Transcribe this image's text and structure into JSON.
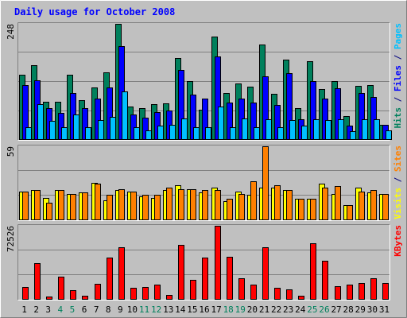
{
  "chart_data": {
    "type": "bar",
    "title": "Daily usage for October 2008",
    "categories": [
      "1",
      "2",
      "3",
      "4",
      "5",
      "6",
      "7",
      "8",
      "9",
      "10",
      "11",
      "12",
      "13",
      "14",
      "15",
      "16",
      "17",
      "18",
      "19",
      "20",
      "21",
      "22",
      "23",
      "24",
      "25",
      "26",
      "27",
      "28",
      "29",
      "30",
      "31"
    ],
    "weekend_days": [
      "4",
      "5",
      "11",
      "12",
      "18",
      "19",
      "25",
      "26"
    ],
    "panels": [
      {
        "name": "hits-files-pages",
        "ymax_label": "248",
        "ylim": [
          0,
          248
        ],
        "ylabel_parts": [
          {
            "text": "Hits",
            "color": "#00805C"
          },
          {
            "text": " / ",
            "color": "#000080"
          },
          {
            "text": "Files",
            "color": "#0000FF"
          },
          {
            "text": " / ",
            "color": "#000080"
          },
          {
            "text": "Pages",
            "color": "#00C0FF"
          }
        ],
        "series": [
          {
            "name": "Hits",
            "color": "#00805C",
            "values": [
              140,
              160,
              82,
              82,
              140,
              85,
              112,
              144,
              248,
              72,
              68,
              77,
              78,
              175,
              125,
              65,
              220,
              101,
              121,
              114,
              203,
              98,
              172,
              68,
              168,
              108,
              126,
              51,
              115,
              118,
              32
            ]
          },
          {
            "name": "Files",
            "color": "#0000FF",
            "values": [
              118,
              128,
              68,
              58,
              100,
              68,
              88,
              112,
              200,
              55,
              48,
              60,
              62,
              150,
              96,
              88,
              178,
              80,
              88,
              80,
              136,
              75,
              143,
              45,
              125,
              89,
              111,
              30,
              100,
              92,
              32
            ]
          },
          {
            "name": "Pages",
            "color": "#00C0FF",
            "values": [
              28,
              77,
              40,
              28,
              55,
              28,
              42,
              50,
              103,
              28,
              20,
              30,
              32,
              46,
              28,
              28,
              72,
              28,
              46,
              28,
              45,
              28,
              43,
              30,
              45,
              42,
              45,
              18,
              45,
              45,
              20
            ]
          }
        ]
      },
      {
        "name": "visits-sites",
        "ymax_label": "59",
        "ylim": [
          0,
          59
        ],
        "ylabel_parts": [
          {
            "text": "Visits",
            "color": "#FFFF00"
          },
          {
            "text": " / ",
            "color": "#000080"
          },
          {
            "text": "Sites",
            "color": "#FF8000"
          }
        ],
        "series": [
          {
            "name": "Visits",
            "color": "#FFFF00",
            "values": [
              23,
              24,
              18,
              24,
              21,
              22,
              30,
              16,
              24,
              23,
              19,
              18,
              24,
              28,
              25,
              22,
              26,
              15,
              23,
              20,
              26,
              26,
              24,
              17,
              17,
              29,
              21,
              12,
              26,
              22,
              21
            ]
          },
          {
            "name": "Sites",
            "color": "#FF8000",
            "values": [
              23,
              24,
              14,
              24,
              21,
              22,
              29,
              20,
              25,
              23,
              20,
              20,
              26,
              25,
              25,
              24,
              24,
              17,
              21,
              31,
              59,
              28,
              24,
              17,
              17,
              26,
              27,
              12,
              23,
              24,
              21
            ]
          }
        ]
      },
      {
        "name": "kbytes",
        "ymax_label": "72526",
        "ylim": [
          0,
          72526
        ],
        "ylabel_parts": [
          {
            "text": "KBytes",
            "color": "#FF0000"
          }
        ],
        "series": [
          {
            "name": "KBytes",
            "color": "#FF0000",
            "values": [
              12500,
              36000,
              3000,
              22500,
              9500,
              4000,
              15500,
              41500,
              51500,
              11500,
              12500,
              15000,
              5000,
              53500,
              19500,
              41500,
              72526,
              42500,
              21000,
              14500,
              51500,
              11500,
              10500,
              4000,
              55500,
              38000,
              13500,
              15000,
              16500,
              21000,
              16500
            ]
          }
        ]
      }
    ]
  }
}
